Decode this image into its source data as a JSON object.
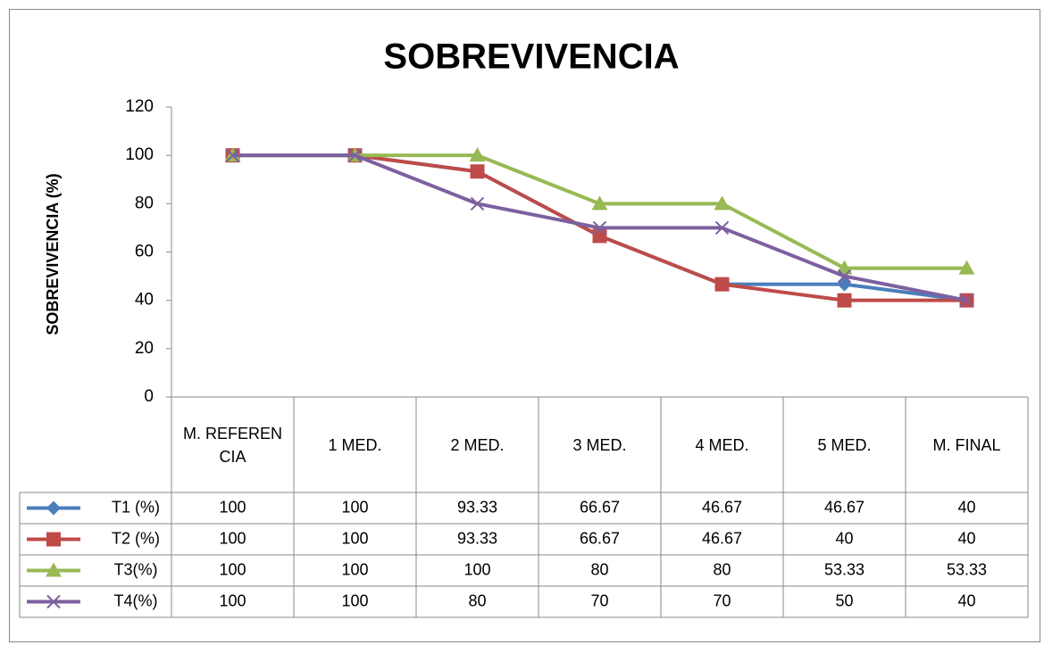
{
  "chart_data": {
    "type": "line",
    "title": "SOBREVIVENCIA",
    "y_label": "SOBREVIVENCIA (%)",
    "categories": [
      "M. REFERENCIA",
      "1 MED.",
      "2 MED.",
      "3 MED.",
      "4 MED.",
      "5 MED.",
      "M. FINAL"
    ],
    "series": [
      {
        "name": "T1 (%)",
        "color": "#4a7ebb",
        "marker": "diamond",
        "values": [
          100,
          100,
          93.33,
          66.67,
          46.67,
          46.67,
          40
        ]
      },
      {
        "name": "T2 (%)",
        "color": "#be4b48",
        "marker": "square",
        "values": [
          100,
          100,
          93.33,
          66.67,
          46.67,
          40,
          40
        ]
      },
      {
        "name": "T3(%)",
        "color": "#98b954",
        "marker": "triangle",
        "values": [
          100,
          100,
          100,
          80,
          80,
          53.33,
          53.33
        ]
      },
      {
        "name": "T4(%)",
        "color": "#7d60a0",
        "marker": "x",
        "values": [
          100,
          100,
          80,
          70,
          70,
          50,
          40
        ]
      }
    ],
    "ylim": [
      0,
      120
    ],
    "yticks": [
      0,
      20,
      40,
      60,
      80,
      100,
      120
    ],
    "data_table": true
  }
}
